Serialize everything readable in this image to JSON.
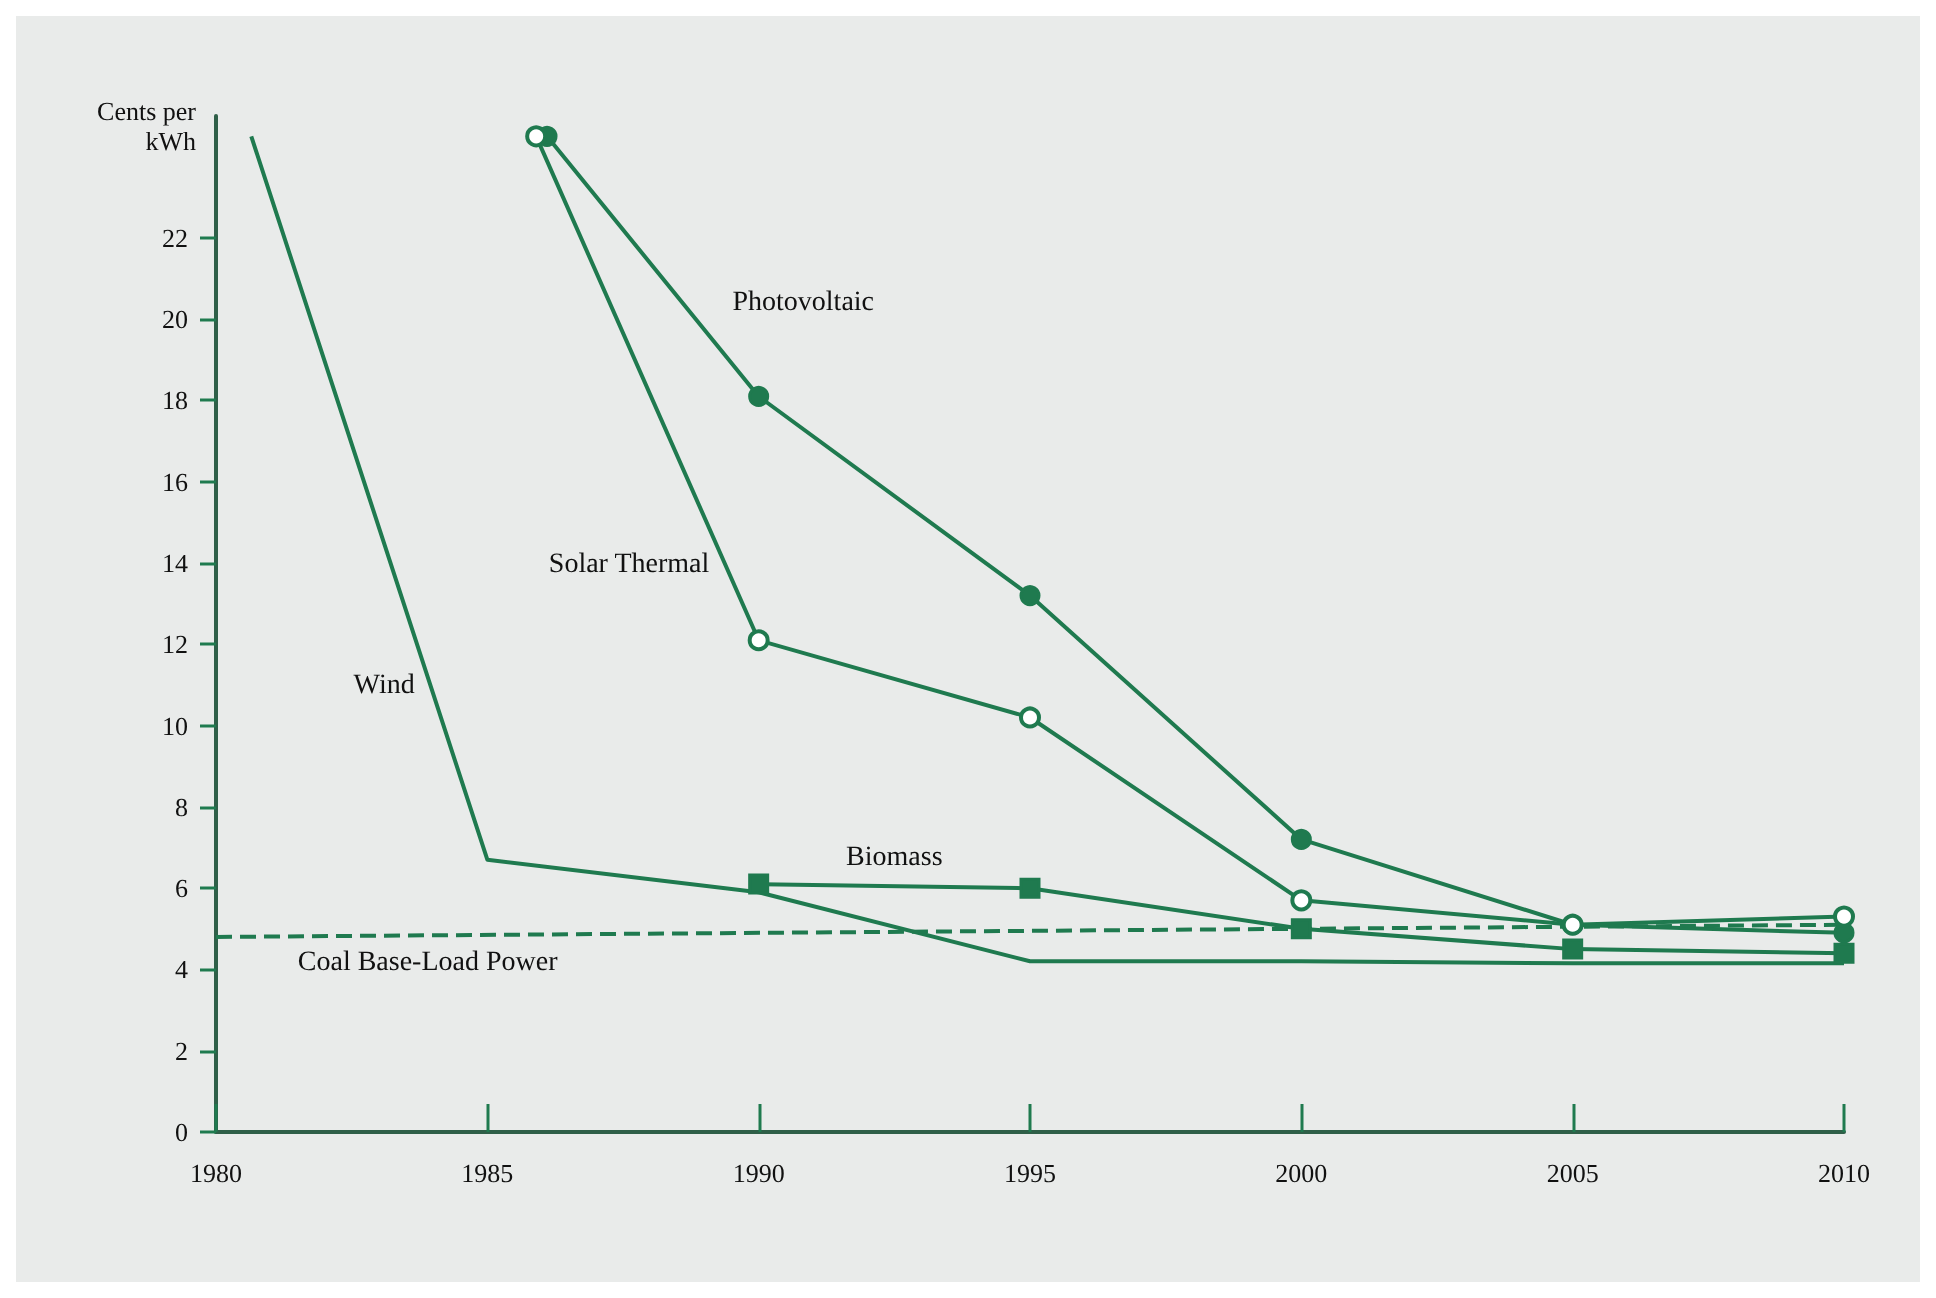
{
  "chart_data": {
    "type": "line",
    "ylabel": "Cents per\nkWh",
    "xlim": [
      1980,
      2010
    ],
    "xticks": [
      1980,
      1985,
      1990,
      1995,
      2000,
      2005,
      2010
    ],
    "ylim": [
      0,
      25
    ],
    "yticks": [
      0,
      2,
      4,
      6,
      8,
      10,
      12,
      14,
      16,
      18,
      20,
      22
    ],
    "grid": false,
    "legend": false,
    "line_style": "solid",
    "series": [
      {
        "name": "Wind",
        "color": "#1f7a4f",
        "marker": "none",
        "x": [
          1980.65,
          1985,
          1990,
          1995,
          2000,
          2005,
          2010
        ],
        "values": [
          24.5,
          6.7,
          5.9,
          4.2,
          4.2,
          4.15,
          4.15
        ]
      },
      {
        "name": "Photovoltaic",
        "color": "#1f7a4f",
        "marker": "circle",
        "x": [
          1986.1,
          1990,
          1995,
          2000,
          2005,
          2010
        ],
        "values": [
          24.5,
          18.1,
          13.2,
          7.2,
          5.1,
          4.9
        ]
      },
      {
        "name": "Solar Thermal",
        "color": "#1f7a4f",
        "marker": "open-circle",
        "x": [
          1985.9,
          1990,
          1995,
          2000,
          2005,
          2010
        ],
        "values": [
          24.5,
          12.1,
          10.2,
          5.7,
          5.1,
          5.3
        ]
      },
      {
        "name": "Biomass",
        "color": "#1f7a4f",
        "marker": "square",
        "x": [
          1990,
          1995,
          2000,
          2005,
          2010
        ],
        "values": [
          6.1,
          6.0,
          5.0,
          4.5,
          4.4
        ]
      },
      {
        "name": "Coal Base-Load Power",
        "color": "#1f7a4f",
        "marker": "none",
        "line_style": "dashed",
        "x": [
          1980,
          2010
        ],
        "values": [
          4.8,
          5.1
        ]
      }
    ]
  }
}
